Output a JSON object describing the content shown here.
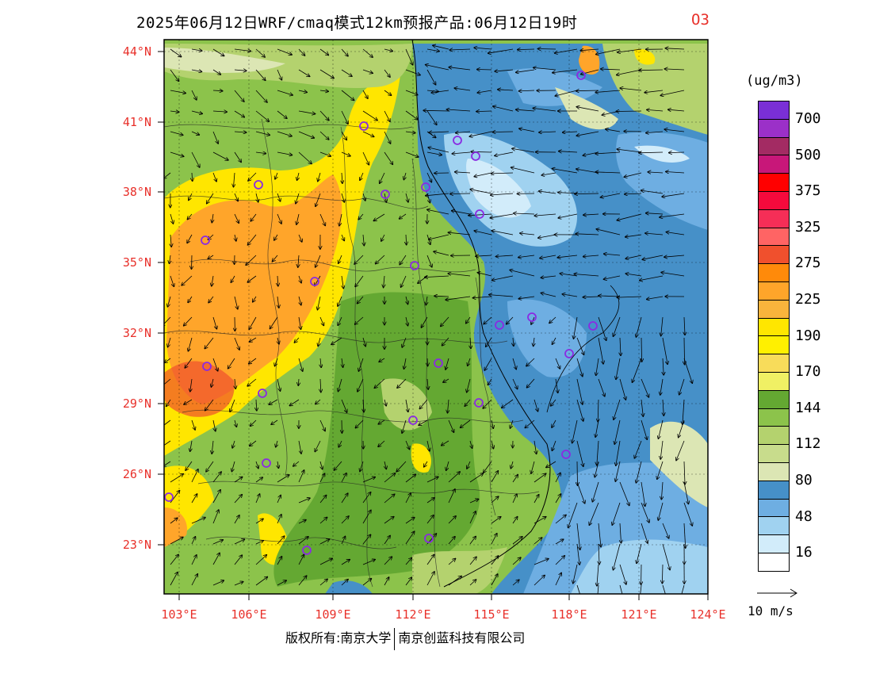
{
  "title": {
    "main": "2025年06月12日WRF/cmaq模式12km预报产品:06月12日19时",
    "variable": "O3"
  },
  "axes": {
    "lat_labels": [
      "44°N",
      "41°N",
      "38°N",
      "35°N",
      "32°N",
      "29°N",
      "26°N",
      "23°N"
    ],
    "lon_labels": [
      "103°E",
      "106°E",
      "109°E",
      "112°E",
      "115°E",
      "118°E",
      "121°E",
      "124°E"
    ]
  },
  "legend": {
    "unit": "(ug/m3)",
    "levels": [
      {
        "label": "700",
        "color": "#7a2fd6"
      },
      {
        "label": "",
        "color": "#9b30c8"
      },
      {
        "label": "500",
        "color": "#a32b63"
      },
      {
        "label": "",
        "color": "#c81779"
      },
      {
        "label": "375",
        "color": "#ff0000"
      },
      {
        "label": "",
        "color": "#f50a3c"
      },
      {
        "label": "325",
        "color": "#f52e57"
      },
      {
        "label": "",
        "color": "#ff6464"
      },
      {
        "label": "275",
        "color": "#f0502d"
      },
      {
        "label": "",
        "color": "#ff8a0a"
      },
      {
        "label": "225",
        "color": "#ffa52a"
      },
      {
        "label": "",
        "color": "#f8b43c"
      },
      {
        "label": "190",
        "color": "#ffe600"
      },
      {
        "label": "",
        "color": "#fff000"
      },
      {
        "label": "170",
        "color": "#f8dc5a"
      },
      {
        "label": "",
        "color": "#f0f064"
      },
      {
        "label": "144",
        "color": "#64a832"
      },
      {
        "label": "",
        "color": "#8cc34b"
      },
      {
        "label": "112",
        "color": "#b4d26e"
      },
      {
        "label": "",
        "color": "#c8dc8c"
      },
      {
        "label": "80",
        "color": "#dce6b4"
      },
      {
        "label": "",
        "color": "#4690c8"
      },
      {
        "label": "48",
        "color": "#6eaee2"
      },
      {
        "label": "",
        "color": "#a0d2f0"
      },
      {
        "label": "16",
        "color": "#d2ecfa"
      },
      {
        "label": "",
        "color": "#ffffff"
      }
    ]
  },
  "wind_reference": {
    "label": "10 m/s"
  },
  "copyright": {
    "left": "版权所有:南京大学",
    "right": "南京创蓝科技有限公司"
  }
}
